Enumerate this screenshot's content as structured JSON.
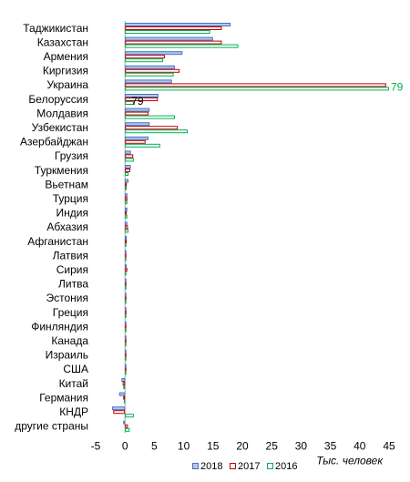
{
  "chart_data": {
    "type": "bar",
    "orientation": "horizontal",
    "categories": [
      "Таджикистан",
      "Казахстан",
      "Армения",
      "Киргизия",
      "Украина",
      "Белоруссия",
      "Молдавия",
      "Узбекистан",
      "Азербайджан",
      "Грузия",
      "Туркмения",
      "Вьетнам",
      "Турция",
      "Индия",
      "Абхазия",
      "Афганистан",
      "Латвия",
      "Сирия",
      "Литва",
      "Эстония",
      "Греция",
      "Финляндия",
      "Канада",
      "Израиль",
      "США",
      "Китай",
      "Германия",
      "КНДР",
      "другие страны"
    ],
    "series": [
      {
        "name": "2018",
        "color": "#4472c4",
        "fill": "#b4c7e7",
        "values": [
          18.0,
          15.0,
          9.8,
          8.5,
          8.0,
          5.7,
          4.2,
          4.2,
          4.0,
          1.0,
          1.0,
          0.6,
          0.4,
          0.4,
          0.4,
          0.3,
          0.1,
          0.3,
          0.1,
          0.1,
          0.1,
          0.1,
          0.1,
          0.1,
          0.1,
          -0.6,
          -1.0,
          -2.2,
          -0.3
        ]
      },
      {
        "name": "2017",
        "color": "#c00000",
        "fill": "#ffffff",
        "values": [
          16.5,
          16.5,
          6.8,
          9.3,
          44.5,
          5.6,
          4.0,
          9.0,
          3.5,
          1.4,
          0.9,
          0.3,
          0.4,
          0.3,
          0.5,
          0.3,
          0.2,
          0.4,
          0.1,
          0.1,
          0.2,
          0.1,
          0.1,
          0.1,
          0.1,
          -0.4,
          -0.3,
          -2.0,
          0.5
        ]
      },
      {
        "name": "2016",
        "color": "#00b050",
        "fill": "#ffffff",
        "values": [
          14.5,
          19.3,
          6.5,
          8.3,
          45.0,
          1.5,
          8.5,
          10.7,
          6.0,
          1.5,
          0.6,
          0.3,
          0.4,
          0.4,
          0.6,
          0.2,
          0.2,
          0.2,
          0.1,
          0.1,
          0.1,
          0.1,
          0.1,
          0.1,
          0.1,
          -0.3,
          -0.2,
          1.5,
          0.8
        ]
      }
    ],
    "data_labels": [
      {
        "category": "Украина",
        "series": "2016",
        "text": "79"
      },
      {
        "category": "Белоруссия",
        "series": "2016",
        "text": "79"
      }
    ],
    "xlim": [
      -5,
      45
    ],
    "xticks": [
      -5,
      0,
      5,
      10,
      15,
      20,
      25,
      30,
      35,
      40,
      45
    ],
    "xlabel": "Тыс. человек",
    "grid": false,
    "legend_position": "bottom-right"
  }
}
